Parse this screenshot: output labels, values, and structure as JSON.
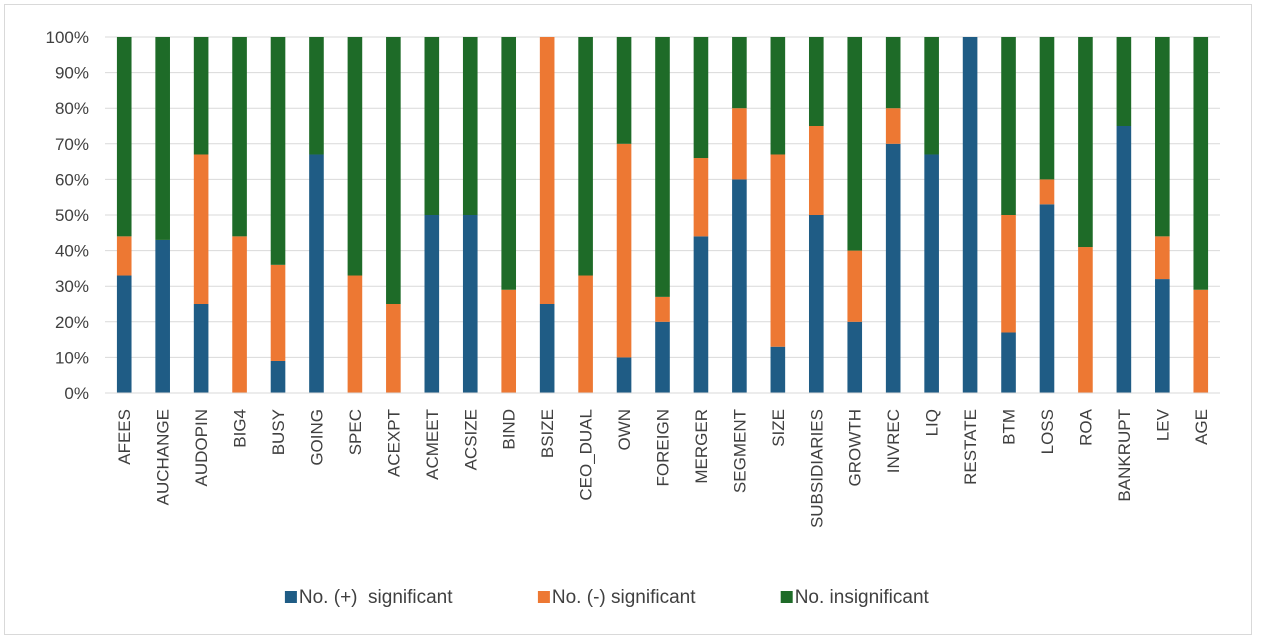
{
  "chart_data": {
    "type": "bar",
    "stacked": true,
    "percent_stacked": true,
    "title": "",
    "xlabel": "",
    "ylabel": "",
    "ylim": [
      0,
      100
    ],
    "yticks": [
      "0%",
      "10%",
      "20%",
      "30%",
      "40%",
      "50%",
      "60%",
      "70%",
      "80%",
      "90%",
      "100%"
    ],
    "grid": true,
    "legend_position": "bottom",
    "categories": [
      "AFEES",
      "AUCHANGE",
      "AUDOPIN",
      "BIG4",
      "BUSY",
      "GOING",
      "SPEC",
      "ACEXPT",
      "ACMEET",
      "ACSIZE",
      "BIND",
      "BSIZE",
      "CEO_DUAL",
      "OWN",
      "FOREIGN",
      "MERGER",
      "SEGMENT",
      "SIZE",
      "SUBSIDIARIES",
      "GROWTH",
      "INVREC",
      "LIQ",
      "RESTATE",
      "BTM",
      "LOSS",
      "ROA",
      "BANKRUPT",
      "LEV",
      "AGE"
    ],
    "series": [
      {
        "name": "No. (+)  significant",
        "color": "#1f5c85",
        "values": [
          33,
          43,
          25,
          0,
          9,
          67,
          0,
          0,
          50,
          50,
          0,
          25,
          0,
          10,
          20,
          44,
          60,
          13,
          50,
          20,
          70,
          67,
          100,
          17,
          53,
          0,
          75,
          32,
          0
        ]
      },
      {
        "name": "No. (-) significant",
        "color": "#ed7833",
        "values": [
          11,
          0,
          42,
          44,
          27,
          0,
          33,
          25,
          0,
          0,
          29,
          75,
          33,
          60,
          7,
          22,
          20,
          54,
          25,
          20,
          10,
          0,
          0,
          33,
          7,
          41,
          0,
          12,
          29
        ]
      },
      {
        "name": "No. insignificant",
        "color": "#1e6b28",
        "values": [
          56,
          57,
          33,
          56,
          64,
          33,
          67,
          75,
          50,
          50,
          71,
          0,
          67,
          30,
          73,
          34,
          20,
          33,
          25,
          60,
          20,
          33,
          0,
          50,
          40,
          59,
          25,
          56,
          71
        ]
      }
    ]
  }
}
